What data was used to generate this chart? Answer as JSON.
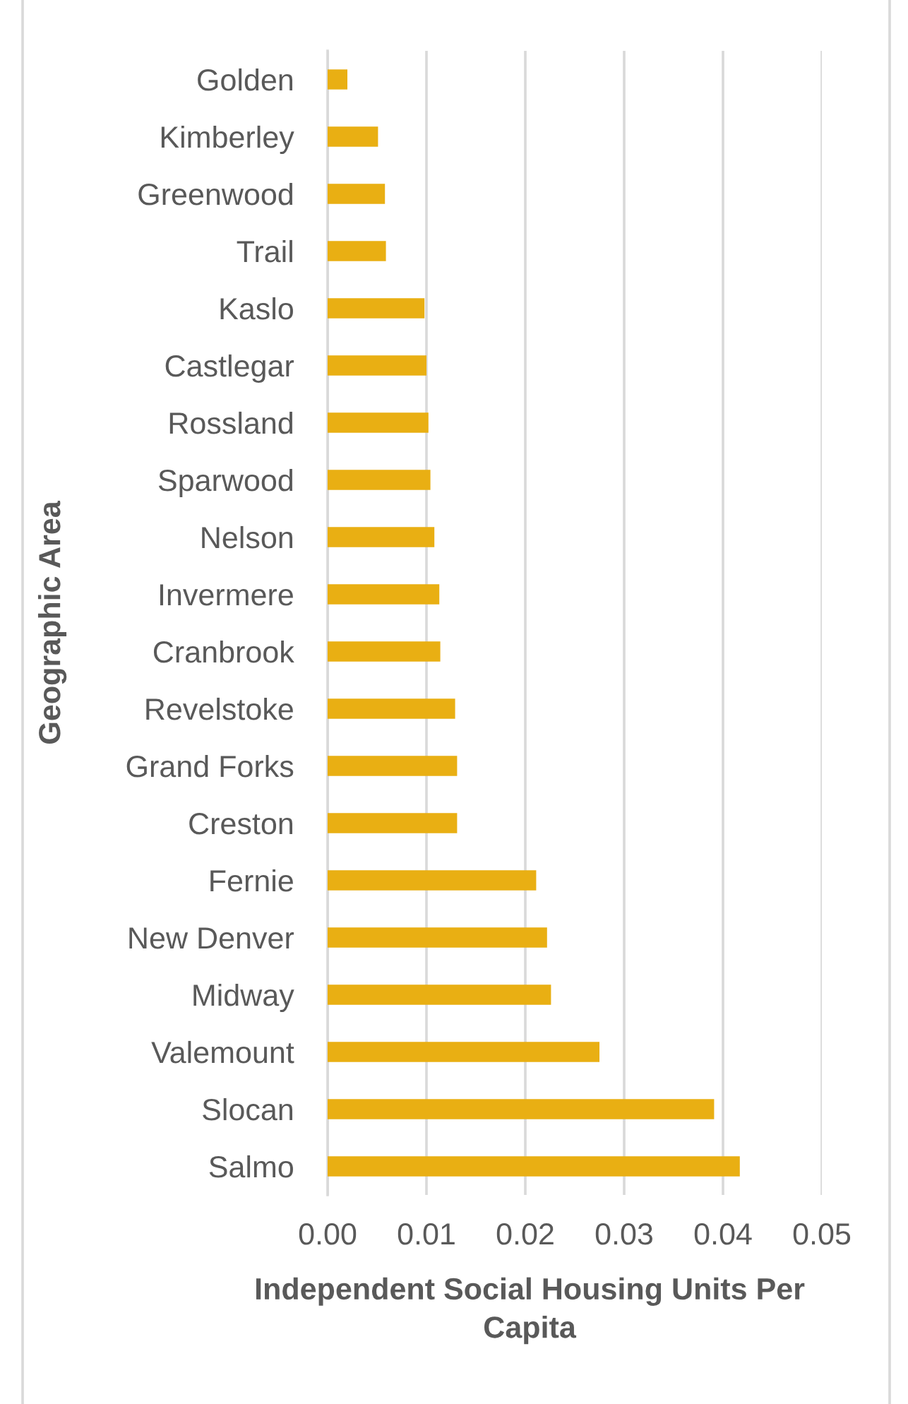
{
  "chart_data": {
    "type": "bar",
    "orientation": "horizontal",
    "categories": [
      "Golden",
      "Kimberley",
      "Greenwood",
      "Trail",
      "Kaslo",
      "Castlegar",
      "Rossland",
      "Sparwood",
      "Nelson",
      "Invermere",
      "Cranbrook",
      "Revelstoke",
      "Grand Forks",
      "Creston",
      "Fernie",
      "New Denver",
      "Midway",
      "Valemount",
      "Slocan",
      "Salmo"
    ],
    "values": [
      0.002,
      0.0051,
      0.0058,
      0.0059,
      0.0098,
      0.01,
      0.0102,
      0.0104,
      0.0108,
      0.0113,
      0.0114,
      0.0129,
      0.0131,
      0.0131,
      0.0211,
      0.0222,
      0.0226,
      0.0275,
      0.0391,
      0.0417
    ],
    "color": "#e9af13",
    "xlim": [
      0,
      0.05
    ],
    "xticks": [
      {
        "value": 0,
        "label": "0.00"
      },
      {
        "value": 0.01,
        "label": "0.01"
      },
      {
        "value": 0.02,
        "label": "0.02"
      },
      {
        "value": 0.03,
        "label": "0.03"
      },
      {
        "value": 0.04,
        "label": "0.04"
      },
      {
        "value": 0.05,
        "label": "0.05"
      }
    ],
    "xlabel": "Independent Social Housing Units Per\nCapita",
    "ylabel": "Geographic Area",
    "grid": "x"
  }
}
